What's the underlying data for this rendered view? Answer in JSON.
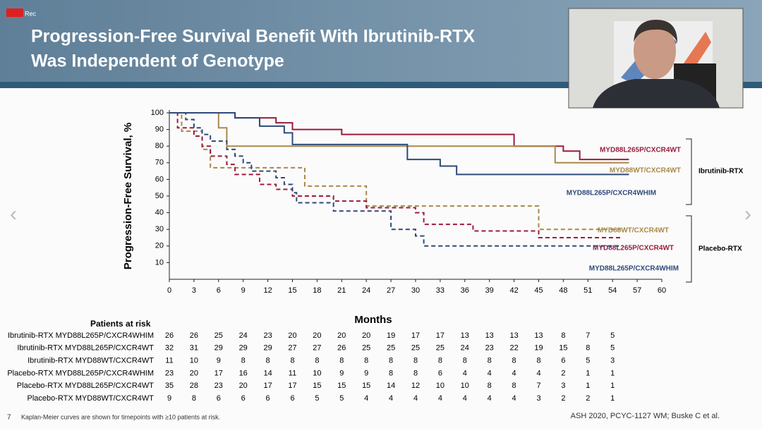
{
  "badge": "Rec",
  "header": {
    "title_lines": [
      "Progression-Free Survival Benefit With Ibrutinib-RTX",
      "Was Independent of Genotype"
    ]
  },
  "chart_data": {
    "type": "step",
    "y_label": "Progression-Free Survival, %",
    "x_label": "Months",
    "xlim": [
      0,
      60
    ],
    "xticks": [
      0,
      3,
      6,
      9,
      12,
      15,
      18,
      21,
      24,
      27,
      30,
      33,
      36,
      39,
      42,
      45,
      48,
      51,
      54,
      57,
      60
    ],
    "ylim": [
      0,
      100
    ],
    "yticks": [
      10,
      20,
      30,
      40,
      50,
      60,
      70,
      80,
      90,
      100
    ],
    "groups": [
      "Ibrutinib-RTX",
      "Placebo-RTX"
    ],
    "series": [
      {
        "name": "MYD88L265P/CXCR4WT",
        "color": "#9b1c3c",
        "dashed": false,
        "x": [
          0,
          3,
          8,
          13,
          15,
          21,
          42,
          48,
          50,
          56
        ],
        "values": [
          100,
          100,
          97,
          94,
          90,
          87,
          80,
          77,
          72,
          72
        ]
      },
      {
        "name": "MYD88WT/CXCR4WT",
        "color": "#a8894a",
        "dashed": false,
        "x": [
          0,
          6,
          7,
          47,
          56
        ],
        "values": [
          100,
          91,
          80,
          70,
          70
        ]
      },
      {
        "name": "MYD88L265P/CXCR4WHIM",
        "color": "#2e4a7a",
        "dashed": false,
        "x": [
          0,
          8,
          11,
          14,
          15,
          29,
          33,
          35,
          56
        ],
        "values": [
          100,
          97,
          92,
          88,
          81,
          72,
          68,
          63,
          63
        ]
      },
      {
        "name": "MYD88WT/CXCR4WT",
        "color": "#a8894a",
        "dashed": true,
        "x": [
          0,
          1.5,
          4,
          5,
          16.5,
          24,
          45,
          55
        ],
        "values": [
          100,
          89,
          78,
          67,
          56,
          44,
          30,
          30
        ]
      },
      {
        "name": "MYD88L265P/CXCR4WT",
        "color": "#9b1c3c",
        "dashed": true,
        "x": [
          0,
          1,
          3,
          4,
          5,
          7,
          8,
          11,
          13,
          15,
          20,
          24,
          30,
          31,
          37,
          45,
          55
        ],
        "values": [
          100,
          91,
          86,
          80,
          74,
          69,
          63,
          57,
          54,
          50,
          47,
          43,
          40,
          33,
          29,
          25,
          25
        ]
      },
      {
        "name": "MYD88L265P/CXCR4WHIM",
        "color": "#2e4a7a",
        "dashed": true,
        "x": [
          0,
          2,
          3,
          4,
          5,
          7,
          8,
          9,
          10,
          13,
          14,
          15,
          15.5,
          20,
          27,
          30,
          31,
          55
        ],
        "values": [
          100,
          96,
          91,
          87,
          83,
          78,
          74,
          70,
          65,
          61,
          57,
          52,
          46,
          41,
          30,
          26,
          20,
          20
        ]
      }
    ]
  },
  "risk_table": {
    "title": "Patients at risk",
    "rows": [
      {
        "label": "Ibrutinib-RTX MYD88L265P/CXCR4WHIM",
        "values": [
          26,
          26,
          25,
          24,
          23,
          20,
          20,
          20,
          20,
          19,
          17,
          17,
          13,
          13,
          13,
          13,
          8,
          7,
          5
        ]
      },
      {
        "label": "Ibrutinib-RTX MYD88L265P/CXCR4WT",
        "values": [
          32,
          31,
          29,
          29,
          29,
          27,
          27,
          26,
          25,
          25,
          25,
          25,
          24,
          23,
          22,
          19,
          15,
          8,
          5
        ]
      },
      {
        "label": "Ibrutinib-RTX MYD88WT/CXCR4WT",
        "values": [
          11,
          10,
          9,
          8,
          8,
          8,
          8,
          8,
          8,
          8,
          8,
          8,
          8,
          8,
          8,
          8,
          6,
          5,
          3
        ]
      },
      {
        "label": "Placebo-RTX MYD88L265P/CXCR4WHIM",
        "values": [
          23,
          20,
          17,
          16,
          14,
          11,
          10,
          9,
          9,
          8,
          8,
          6,
          4,
          4,
          4,
          4,
          2,
          1,
          1
        ]
      },
      {
        "label": "Placebo-RTX MYD88L265P/CXCR4WT",
        "values": [
          35,
          28,
          23,
          20,
          17,
          17,
          15,
          15,
          15,
          14,
          12,
          10,
          10,
          8,
          8,
          7,
          3,
          1,
          1
        ]
      },
      {
        "label": "Placebo-RTX MYD88WT/CXCR4WT",
        "values": [
          9,
          8,
          6,
          6,
          6,
          6,
          5,
          5,
          4,
          4,
          4,
          4,
          4,
          4,
          4,
          3,
          2,
          2,
          1
        ]
      }
    ]
  },
  "footer": {
    "slide_number": "7",
    "note": "Kaplan-Meier curves are shown for timepoints with ≥10 patients at risk.",
    "citation": "ASH 2020, PCYC-1127 WM; Buske C et al."
  }
}
